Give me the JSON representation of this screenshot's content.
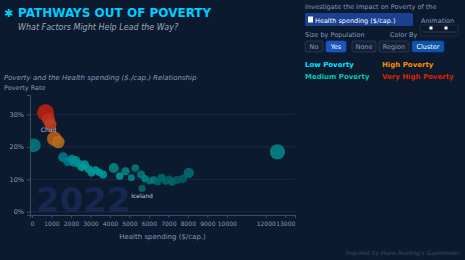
{
  "chart_data": {
    "type": "scatter",
    "title": "PATHWAYS OUT OF POVERTY",
    "subtitle": "What Factors Might Help Lead the Way?",
    "xlabel": "Health spending ($/cap.)",
    "ylabel": "Poverty Rate",
    "xlim": [
      -100,
      13500
    ],
    "ylim": [
      -1,
      36
    ],
    "xticks": [
      0,
      1000,
      2000,
      3000,
      4000,
      5000,
      6000,
      7000,
      8000,
      9000,
      10000,
      12000,
      13000
    ],
    "yticks": [
      {
        "value": 0,
        "label": "0%"
      },
      {
        "value": 10,
        "label": "10%"
      },
      {
        "value": 20,
        "label": "20%"
      },
      {
        "value": 30,
        "label": "30%"
      }
    ],
    "grid": true,
    "x": [
      100,
      700,
      850,
      950,
      1150,
      1350,
      1600,
      1850,
      2050,
      2150,
      2250,
      2400,
      2550,
      2700,
      2900,
      3050,
      3250,
      3450,
      3650,
      4200,
      4500,
      4800,
      5100,
      5300,
      5600,
      5800,
      6050,
      6250,
      6450,
      6650,
      6850,
      7050,
      7200,
      7450,
      7750,
      8050,
      5650,
      12600
    ],
    "values": [
      20.5,
      30.5,
      28.5,
      27.0,
      22.5,
      21.5,
      16.8,
      15.5,
      16.2,
      15.2,
      15.8,
      14.8,
      13.8,
      14.5,
      13.2,
      12.0,
      12.8,
      12.2,
      11.5,
      13.5,
      11.0,
      12.5,
      10.5,
      13.5,
      11.5,
      10.2,
      9.5,
      9.8,
      9.2,
      10.5,
      9.5,
      9.8,
      9.2,
      9.8,
      10.2,
      12.0,
      7.2,
      18.5
    ],
    "sizes": [
      130,
      200,
      120,
      100,
      150,
      110,
      70,
      60,
      55,
      50,
      55,
      45,
      50,
      55,
      45,
      40,
      45,
      40,
      45,
      70,
      40,
      45,
      35,
      40,
      45,
      35,
      35,
      40,
      35,
      45,
      40,
      55,
      40,
      45,
      50,
      75,
      35,
      160
    ],
    "colors": [
      "#007a7a",
      "#c02010",
      "#b83020",
      "#c04020",
      "#c06010",
      "#b07020",
      "#007a8a",
      "#007a8a",
      "#008a9a",
      "#008a9a",
      "#009090",
      "#009090",
      "#009a9a",
      "#009a9a",
      "#009a9a",
      "#009a9a",
      "#009a9a",
      "#009a9a",
      "#009a9a",
      "#008888",
      "#009a9a",
      "#008888",
      "#008888",
      "#007a7a",
      "#007a7a",
      "#008888",
      "#007a7a",
      "#007a7a",
      "#006a6a",
      "#006a6a",
      "#006a6a",
      "#006060",
      "#006a6a",
      "#006060",
      "#006060",
      "#007070",
      "#006a6a",
      "#008888"
    ],
    "labels": [
      null,
      null,
      "Chad",
      null,
      null,
      null,
      null,
      null,
      null,
      null,
      null,
      null,
      null,
      null,
      null,
      null,
      null,
      null,
      null,
      null,
      null,
      null,
      null,
      null,
      null,
      null,
      null,
      null,
      null,
      null,
      null,
      null,
      null,
      null,
      null,
      null,
      "Iceland",
      null
    ],
    "annotations": [
      {
        "text": "✱",
        "color": "#00ccff"
      },
      {
        "text": "2022"
      },
      {
        "text": "Poverty and the Health spending ($./cap.) Relationship"
      },
      {
        "text": "Investigate the Impact on Poverty of the"
      },
      {
        "text": "Health spending ($/cap.)"
      },
      {
        "text": "Size by Population"
      },
      {
        "text": "Color By"
      },
      {
        "text": "No"
      },
      {
        "text": "Yes"
      },
      {
        "text": "None"
      },
      {
        "text": "Region"
      },
      {
        "text": "Cluster"
      },
      {
        "text": "Low Poverty",
        "color": "#00e5ff"
      },
      {
        "text": "Medium Poverty",
        "color": "#00c9b0"
      },
      {
        "text": "High Poverty",
        "color": "#ff8c00"
      },
      {
        "text": "Very High Poverty",
        "color": "#dd2200"
      },
      {
        "text": "Animation"
      },
      {
        "text": "Inspired by Hans Rosling's Gapminder"
      }
    ]
  }
}
